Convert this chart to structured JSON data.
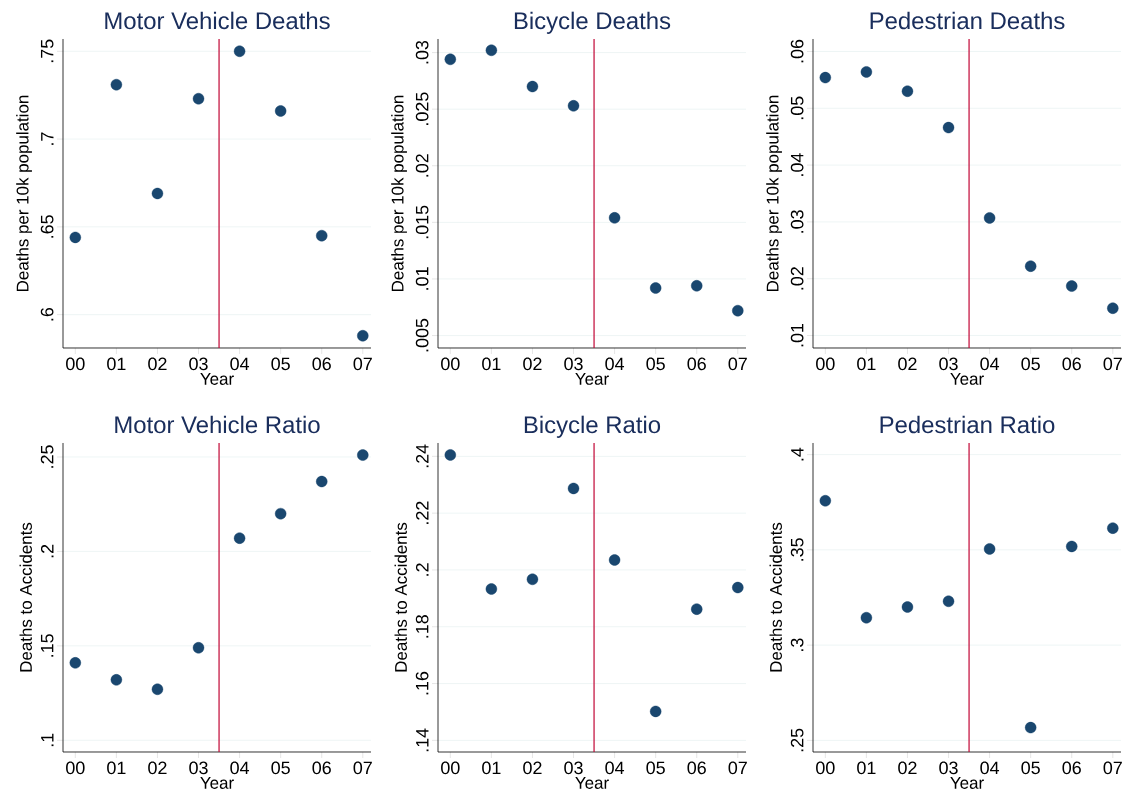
{
  "chart_data": [
    {
      "type": "scatter",
      "title": "Motor Vehicle Deaths",
      "xlabel": "Year",
      "ylabel": "Deaths per 10k population",
      "x": [
        0,
        1,
        2,
        3,
        4,
        5,
        6,
        7
      ],
      "values": [
        0.644,
        0.731,
        0.669,
        0.723,
        0.75,
        0.716,
        0.645,
        0.588
      ],
      "color": "#1a476f",
      "xlim": [
        -0.3,
        7.2
      ],
      "xticks": [
        {
          "value": 0,
          "label": "00"
        },
        {
          "value": 1,
          "label": "01"
        },
        {
          "value": 2,
          "label": "02"
        },
        {
          "value": 3,
          "label": "03"
        },
        {
          "value": 4,
          "label": "04"
        },
        {
          "value": 5,
          "label": "05"
        },
        {
          "value": 6,
          "label": "06"
        },
        {
          "value": 7,
          "label": "07"
        }
      ],
      "ylim": [
        0.581,
        0.757
      ],
      "yticks": [
        {
          "value": 0.6,
          "label": ".6"
        },
        {
          "value": 0.65,
          "label": ".65"
        },
        {
          "value": 0.7,
          "label": ".7"
        },
        {
          "value": 0.75,
          "label": ".75"
        }
      ],
      "ref_lines": [
        {
          "axis": "x",
          "value": 3.5,
          "color": "#c10534"
        }
      ],
      "grid": "y",
      "marker": "circle"
    },
    {
      "type": "scatter",
      "title": "Bicycle Deaths",
      "xlabel": "Year",
      "ylabel": "Deaths per 10k population",
      "x": [
        0,
        1,
        2,
        3,
        4,
        5,
        6,
        7
      ],
      "values": [
        0.0294,
        0.0302,
        0.027,
        0.0253,
        0.0154,
        0.0092,
        0.0094,
        0.0072
      ],
      "color": "#1a476f",
      "xlim": [
        -0.3,
        7.2
      ],
      "xticks": [
        {
          "value": 0,
          "label": "00"
        },
        {
          "value": 1,
          "label": "01"
        },
        {
          "value": 2,
          "label": "02"
        },
        {
          "value": 3,
          "label": "03"
        },
        {
          "value": 4,
          "label": "04"
        },
        {
          "value": 5,
          "label": "05"
        },
        {
          "value": 6,
          "label": "06"
        },
        {
          "value": 7,
          "label": "07"
        }
      ],
      "ylim": [
        0.0039,
        0.0312
      ],
      "yticks": [
        {
          "value": 0.005,
          "label": ".005"
        },
        {
          "value": 0.01,
          "label": ".01"
        },
        {
          "value": 0.015,
          "label": ".015"
        },
        {
          "value": 0.02,
          "label": ".02"
        },
        {
          "value": 0.025,
          "label": ".025"
        },
        {
          "value": 0.03,
          "label": ".03"
        }
      ],
      "ref_lines": [
        {
          "axis": "x",
          "value": 3.5,
          "color": "#c10534"
        }
      ],
      "grid": "y",
      "marker": "circle"
    },
    {
      "type": "scatter",
      "title": "Pedestrian Deaths",
      "xlabel": "Year",
      "ylabel": "Deaths per 10k population",
      "x": [
        0,
        1,
        2,
        3,
        4,
        5,
        6,
        7
      ],
      "values": [
        0.0554,
        0.0564,
        0.053,
        0.0466,
        0.0307,
        0.0222,
        0.0187,
        0.0148
      ],
      "color": "#1a476f",
      "xlim": [
        -0.3,
        7.2
      ],
      "xticks": [
        {
          "value": 0,
          "label": "00"
        },
        {
          "value": 1,
          "label": "01"
        },
        {
          "value": 2,
          "label": "02"
        },
        {
          "value": 3,
          "label": "03"
        },
        {
          "value": 4,
          "label": "04"
        },
        {
          "value": 5,
          "label": "05"
        },
        {
          "value": 6,
          "label": "06"
        },
        {
          "value": 7,
          "label": "07"
        }
      ],
      "ylim": [
        0.0078,
        0.0622
      ],
      "yticks": [
        {
          "value": 0.01,
          "label": ".01"
        },
        {
          "value": 0.02,
          "label": ".02"
        },
        {
          "value": 0.03,
          "label": ".03"
        },
        {
          "value": 0.04,
          "label": ".04"
        },
        {
          "value": 0.05,
          "label": ".05"
        },
        {
          "value": 0.06,
          "label": ".06"
        }
      ],
      "ref_lines": [
        {
          "axis": "x",
          "value": 3.5,
          "color": "#c10534"
        }
      ],
      "grid": "y",
      "marker": "circle"
    },
    {
      "type": "scatter",
      "title": "Motor Vehicle Ratio",
      "xlabel": "Year",
      "ylabel": "Deaths to Accidents",
      "x": [
        0,
        1,
        2,
        3,
        4,
        5,
        6,
        7
      ],
      "values": [
        0.141,
        0.132,
        0.127,
        0.149,
        0.207,
        0.22,
        0.237,
        0.251
      ],
      "color": "#1a476f",
      "xlim": [
        -0.3,
        7.2
      ],
      "xticks": [
        {
          "value": 0,
          "label": "00"
        },
        {
          "value": 1,
          "label": "01"
        },
        {
          "value": 2,
          "label": "02"
        },
        {
          "value": 3,
          "label": "03"
        },
        {
          "value": 4,
          "label": "04"
        },
        {
          "value": 5,
          "label": "05"
        },
        {
          "value": 6,
          "label": "06"
        },
        {
          "value": 7,
          "label": "07"
        }
      ],
      "ylim": [
        0.0938,
        0.2574
      ],
      "yticks": [
        {
          "value": 0.1,
          "label": ".1"
        },
        {
          "value": 0.15,
          "label": ".15"
        },
        {
          "value": 0.2,
          "label": ".2"
        },
        {
          "value": 0.25,
          "label": ".25"
        }
      ],
      "ref_lines": [
        {
          "axis": "x",
          "value": 3.5,
          "color": "#c10534"
        }
      ],
      "grid": "y",
      "marker": "circle"
    },
    {
      "type": "scatter",
      "title": "Bicycle Ratio",
      "xlabel": "Year",
      "ylabel": "Deaths to Accidents",
      "x": [
        0,
        1,
        2,
        3,
        4,
        5,
        6,
        7
      ],
      "values": [
        0.2405,
        0.1933,
        0.1967,
        0.2287,
        0.2035,
        0.1502,
        0.1862,
        0.1938
      ],
      "color": "#1a476f",
      "xlim": [
        -0.3,
        7.2
      ],
      "xticks": [
        {
          "value": 0,
          "label": "00"
        },
        {
          "value": 1,
          "label": "01"
        },
        {
          "value": 2,
          "label": "02"
        },
        {
          "value": 3,
          "label": "03"
        },
        {
          "value": 4,
          "label": "04"
        },
        {
          "value": 5,
          "label": "05"
        },
        {
          "value": 6,
          "label": "06"
        },
        {
          "value": 7,
          "label": "07"
        }
      ],
      "ylim": [
        0.1359,
        0.2447
      ],
      "yticks": [
        {
          "value": 0.14,
          "label": ".14"
        },
        {
          "value": 0.16,
          "label": ".16"
        },
        {
          "value": 0.18,
          "label": ".18"
        },
        {
          "value": 0.2,
          "label": ".2"
        },
        {
          "value": 0.22,
          "label": ".22"
        },
        {
          "value": 0.24,
          "label": ".24"
        }
      ],
      "ref_lines": [
        {
          "axis": "x",
          "value": 3.5,
          "color": "#c10534"
        }
      ],
      "grid": "y",
      "marker": "circle"
    },
    {
      "type": "scatter",
      "title": "Pedestrian Ratio",
      "xlabel": "Year",
      "ylabel": "Deaths to Accidents",
      "x": [
        0,
        1,
        2,
        3,
        4,
        5,
        6,
        7
      ],
      "values": [
        0.3758,
        0.3144,
        0.32,
        0.323,
        0.3505,
        0.2567,
        0.3518,
        0.3614
      ],
      "color": "#1a476f",
      "xlim": [
        -0.3,
        7.2
      ],
      "xticks": [
        {
          "value": 0,
          "label": "00"
        },
        {
          "value": 1,
          "label": "01"
        },
        {
          "value": 2,
          "label": "02"
        },
        {
          "value": 3,
          "label": "03"
        },
        {
          "value": 4,
          "label": "04"
        },
        {
          "value": 5,
          "label": "05"
        },
        {
          "value": 6,
          "label": "06"
        },
        {
          "value": 7,
          "label": "07"
        }
      ],
      "ylim": [
        0.2439,
        0.4061
      ],
      "yticks": [
        {
          "value": 0.25,
          "label": ".25"
        },
        {
          "value": 0.3,
          "label": ".3"
        },
        {
          "value": 0.35,
          "label": ".35"
        },
        {
          "value": 0.4,
          "label": ".4"
        }
      ],
      "ref_lines": [
        {
          "axis": "x",
          "value": 3.5,
          "color": "#c10534"
        }
      ],
      "grid": "y",
      "marker": "circle"
    }
  ]
}
